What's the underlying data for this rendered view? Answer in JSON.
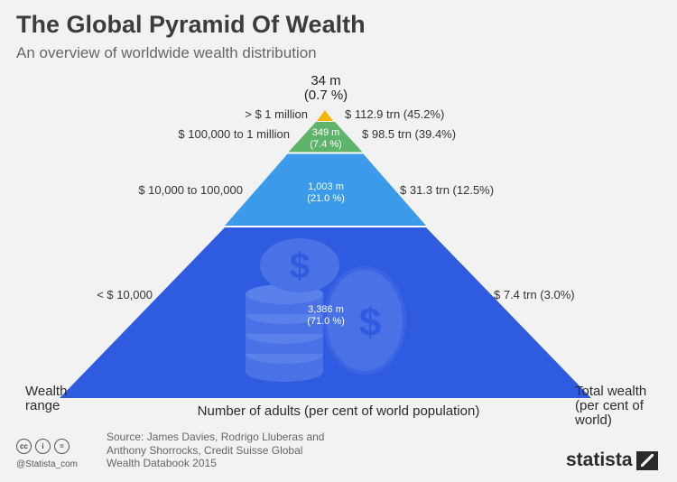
{
  "title": "The Global Pyramid Of Wealth",
  "subtitle": "An overview of worldwide wealth distribution",
  "colors": {
    "tier1": "#f2b705",
    "tier2": "#5fb46c",
    "tier3": "#3b9bea",
    "tier4": "#2f5be0",
    "coin": "#4c78e9",
    "divider": "#ffffff"
  },
  "tiers": [
    {
      "range": "> $ 1 million",
      "adults": "34 m",
      "share": "(0.7 %)",
      "wealth": "$ 112.9 trn (45.2%)"
    },
    {
      "range": "$ 100,000 to 1 million",
      "adults": "349 m",
      "share": "(7.4 %)",
      "wealth": "$ 98.5 trn (39.4%)"
    },
    {
      "range": "$ 10,000 to 100,000",
      "adults": "1,003 m",
      "share": "(21.0 %)",
      "wealth": "$ 31.3 trn (12.5%)"
    },
    {
      "range": "< $ 10,000",
      "adults": "3,386 m",
      "share": "(71.0 %)",
      "wealth": "$ 7.4 trn (3.0%)"
    }
  ],
  "axis": {
    "left_line1": "Wealth",
    "left_line2": "range",
    "bottom": "Number of adults (per cent of world population)",
    "right_line1": "Total wealth",
    "right_line2": "(per cent of",
    "right_line3": "world)"
  },
  "source": {
    "line1": "Source: James Davies, Rodrigo Lluberas and",
    "line2": "Anthony Shorrocks, Credit Suisse Global",
    "line3": "Wealth Databook 2015"
  },
  "license_icons": [
    "cc-icon",
    "by-icon",
    "nd-icon"
  ],
  "license_glyphs": {
    "cc": "cc",
    "by": "i",
    "nd": "="
  },
  "handle": "@Statista_com",
  "brand": "statista"
}
